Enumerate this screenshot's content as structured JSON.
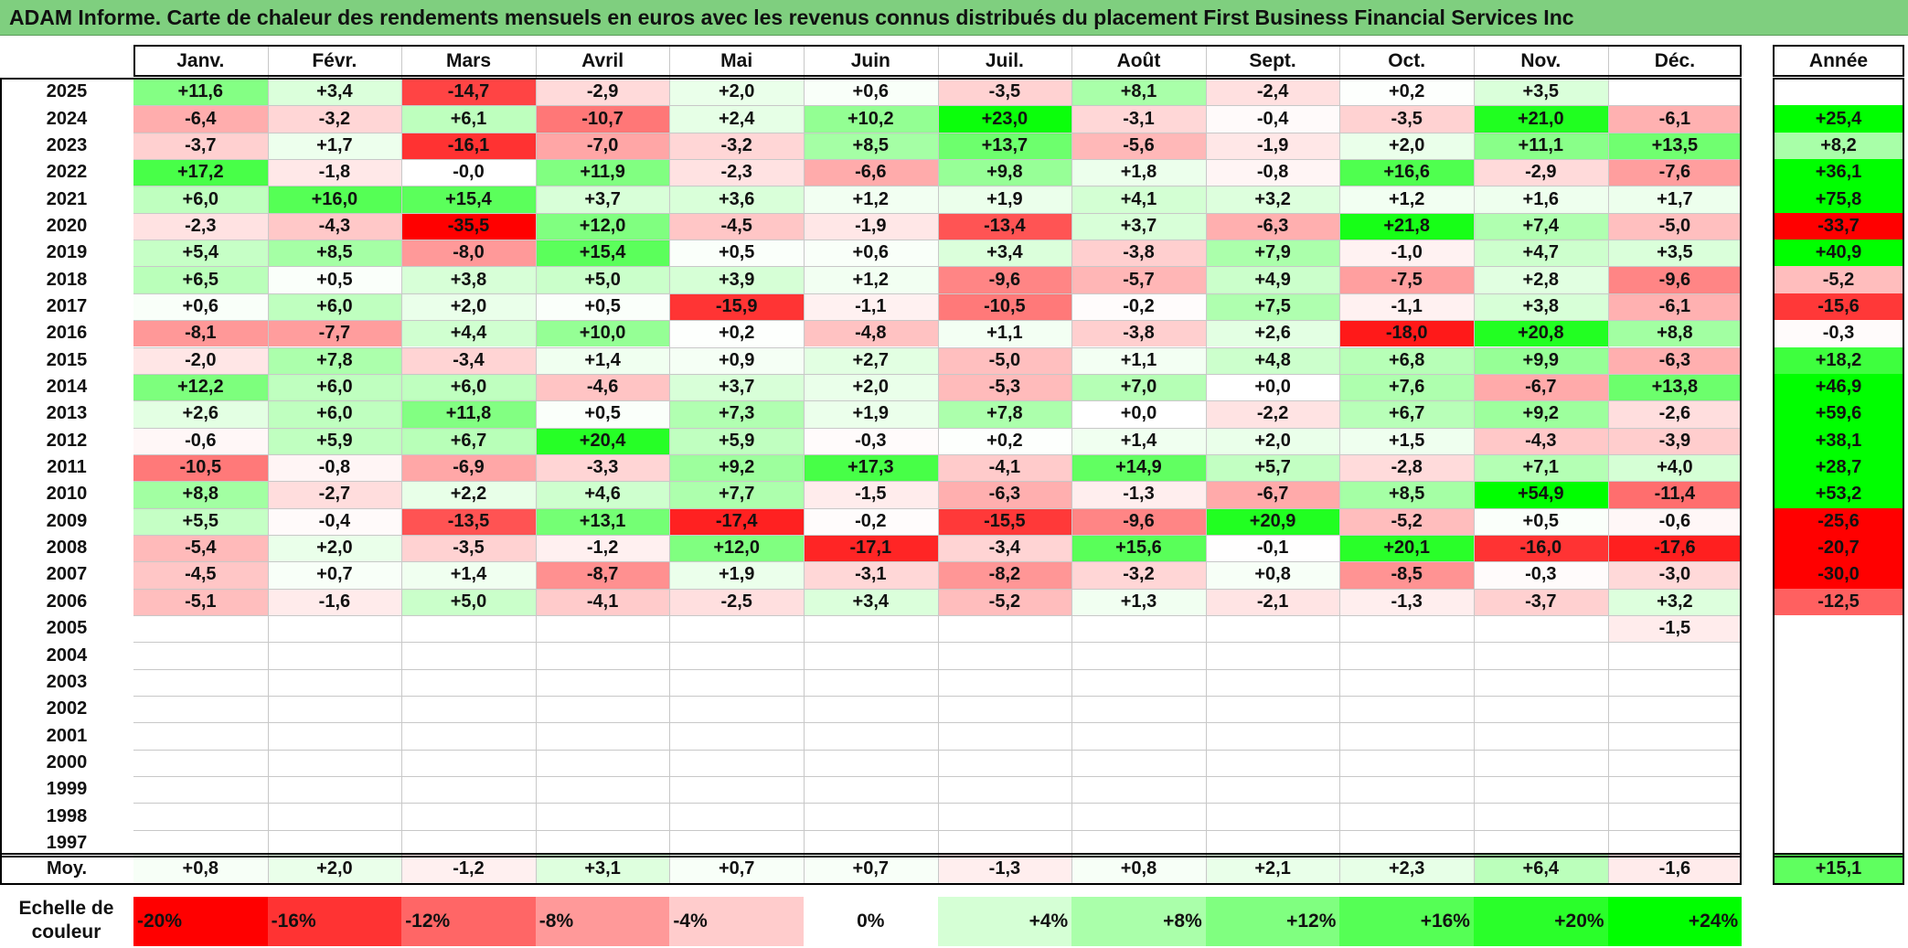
{
  "title": "ADAM Informe. Carte de chaleur des rendements mensuels en euros avec les revenus connus distribués du placement First Business Financial Services Inc",
  "colors": {
    "title_bg": "#7fcf7f",
    "neg_max": "#ff0000",
    "pos_max": "#00ff00",
    "neutral": "#ffffff"
  },
  "chart_data": {
    "type": "heatmap",
    "title": "ADAM Informe. Carte de chaleur des rendements mensuels en euros avec les revenus connus distribués du placement First Business Financial Services Inc",
    "months": [
      "Janv.",
      "Févr.",
      "Mars",
      "Avril",
      "Mai",
      "Juin",
      "Juil.",
      "Août",
      "Sept.",
      "Oct.",
      "Nov.",
      "Déc."
    ],
    "year_header": "Année",
    "rows": [
      {
        "year": "2025",
        "values": [
          "+11,6",
          "+3,4",
          "-14,7",
          "-2,9",
          "+2,0",
          "+0,6",
          "-3,5",
          "+8,1",
          "-2,4",
          "+0,2",
          "+3,5",
          ""
        ],
        "annual": ""
      },
      {
        "year": "2024",
        "values": [
          "-6,4",
          "-3,2",
          "+6,1",
          "-10,7",
          "+2,4",
          "+10,2",
          "+23,0",
          "-3,1",
          "-0,4",
          "-3,5",
          "+21,0",
          "-6,1"
        ],
        "annual": "+25,4"
      },
      {
        "year": "2023",
        "values": [
          "-3,7",
          "+1,7",
          "-16,1",
          "-7,0",
          "-3,2",
          "+8,5",
          "+13,7",
          "-5,6",
          "-1,9",
          "+2,0",
          "+11,1",
          "+13,5"
        ],
        "annual": "+8,2"
      },
      {
        "year": "2022",
        "values": [
          "+17,2",
          "-1,8",
          "-0,0",
          "+11,9",
          "-2,3",
          "-6,6",
          "+9,8",
          "+1,8",
          "-0,8",
          "+16,6",
          "-2,9",
          "-7,6"
        ],
        "annual": "+36,1"
      },
      {
        "year": "2021",
        "values": [
          "+6,0",
          "+16,0",
          "+15,4",
          "+3,7",
          "+3,6",
          "+1,2",
          "+1,9",
          "+4,1",
          "+3,2",
          "+1,2",
          "+1,6",
          "+1,7"
        ],
        "annual": "+75,8"
      },
      {
        "year": "2020",
        "values": [
          "-2,3",
          "-4,3",
          "-35,5",
          "+12,0",
          "-4,5",
          "-1,9",
          "-13,4",
          "+3,7",
          "-6,3",
          "+21,8",
          "+7,4",
          "-5,0"
        ],
        "annual": "-33,7"
      },
      {
        "year": "2019",
        "values": [
          "+5,4",
          "+8,5",
          "-8,0",
          "+15,4",
          "+0,5",
          "+0,6",
          "+3,4",
          "-3,8",
          "+7,9",
          "-1,0",
          "+4,7",
          "+3,5"
        ],
        "annual": "+40,9"
      },
      {
        "year": "2018",
        "values": [
          "+6,5",
          "+0,5",
          "+3,8",
          "+5,0",
          "+3,9",
          "+1,2",
          "-9,6",
          "-5,7",
          "+4,9",
          "-7,5",
          "+2,8",
          "-9,6"
        ],
        "annual": "-5,2"
      },
      {
        "year": "2017",
        "values": [
          "+0,6",
          "+6,0",
          "+2,0",
          "+0,5",
          "-15,9",
          "-1,1",
          "-10,5",
          "-0,2",
          "+7,5",
          "-1,1",
          "+3,8",
          "-6,1"
        ],
        "annual": "-15,6"
      },
      {
        "year": "2016",
        "values": [
          "-8,1",
          "-7,7",
          "+4,4",
          "+10,0",
          "+0,2",
          "-4,8",
          "+1,1",
          "-3,8",
          "+2,6",
          "-18,0",
          "+20,8",
          "+8,8"
        ],
        "annual": "-0,3"
      },
      {
        "year": "2015",
        "values": [
          "-2,0",
          "+7,8",
          "-3,4",
          "+1,4",
          "+0,9",
          "+2,7",
          "-5,0",
          "+1,1",
          "+4,8",
          "+6,8",
          "+9,9",
          "-6,3"
        ],
        "annual": "+18,2"
      },
      {
        "year": "2014",
        "values": [
          "+12,2",
          "+6,0",
          "+6,0",
          "-4,6",
          "+3,7",
          "+2,0",
          "-5,3",
          "+7,0",
          "+0,0",
          "+7,6",
          "-6,7",
          "+13,8"
        ],
        "annual": "+46,9"
      },
      {
        "year": "2013",
        "values": [
          "+2,6",
          "+6,0",
          "+11,8",
          "+0,5",
          "+7,3",
          "+1,9",
          "+7,8",
          "+0,0",
          "-2,2",
          "+6,7",
          "+9,2",
          "-2,6"
        ],
        "annual": "+59,6"
      },
      {
        "year": "2012",
        "values": [
          "-0,6",
          "+5,9",
          "+6,7",
          "+20,4",
          "+5,9",
          "-0,3",
          "+0,2",
          "+1,4",
          "+2,0",
          "+1,5",
          "-4,3",
          "-3,9"
        ],
        "annual": "+38,1"
      },
      {
        "year": "2011",
        "values": [
          "-10,5",
          "-0,8",
          "-6,9",
          "-3,3",
          "+9,2",
          "+17,3",
          "-4,1",
          "+14,9",
          "+5,7",
          "-2,8",
          "+7,1",
          "+4,0"
        ],
        "annual": "+28,7"
      },
      {
        "year": "2010",
        "values": [
          "+8,8",
          "-2,7",
          "+2,2",
          "+4,6",
          "+7,7",
          "-1,5",
          "-6,3",
          "-1,3",
          "-6,7",
          "+8,5",
          "+54,9",
          "-11,4"
        ],
        "annual": "+53,2"
      },
      {
        "year": "2009",
        "values": [
          "+5,5",
          "-0,4",
          "-13,5",
          "+13,1",
          "-17,4",
          "-0,2",
          "-15,5",
          "-9,6",
          "+20,9",
          "-5,2",
          "+0,5",
          "-0,6"
        ],
        "annual": "-25,6"
      },
      {
        "year": "2008",
        "values": [
          "-5,4",
          "+2,0",
          "-3,5",
          "-1,2",
          "+12,0",
          "-17,1",
          "-3,4",
          "+15,6",
          "-0,1",
          "+20,1",
          "-16,0",
          "-17,6"
        ],
        "annual": "-20,7"
      },
      {
        "year": "2007",
        "values": [
          "-4,5",
          "+0,7",
          "+1,4",
          "-8,7",
          "+1,9",
          "-3,1",
          "-8,2",
          "-3,2",
          "+0,8",
          "-8,5",
          "-0,3",
          "-3,0"
        ],
        "annual": "-30,0"
      },
      {
        "year": "2006",
        "values": [
          "-5,1",
          "-1,6",
          "+5,0",
          "-4,1",
          "-2,5",
          "+3,4",
          "-5,2",
          "+1,3",
          "-2,1",
          "-1,3",
          "-3,7",
          "+3,2"
        ],
        "annual": "-12,5"
      },
      {
        "year": "2005",
        "values": [
          "",
          "",
          "",
          "",
          "",
          "",
          "",
          "",
          "",
          "",
          "",
          "-1,5"
        ],
        "annual": ""
      },
      {
        "year": "2004",
        "values": [
          "",
          "",
          "",
          "",
          "",
          "",
          "",
          "",
          "",
          "",
          "",
          ""
        ],
        "annual": ""
      },
      {
        "year": "2003",
        "values": [
          "",
          "",
          "",
          "",
          "",
          "",
          "",
          "",
          "",
          "",
          "",
          ""
        ],
        "annual": ""
      },
      {
        "year": "2002",
        "values": [
          "",
          "",
          "",
          "",
          "",
          "",
          "",
          "",
          "",
          "",
          "",
          ""
        ],
        "annual": ""
      },
      {
        "year": "2001",
        "values": [
          "",
          "",
          "",
          "",
          "",
          "",
          "",
          "",
          "",
          "",
          "",
          ""
        ],
        "annual": ""
      },
      {
        "year": "2000",
        "values": [
          "",
          "",
          "",
          "",
          "",
          "",
          "",
          "",
          "",
          "",
          "",
          ""
        ],
        "annual": ""
      },
      {
        "year": "1999",
        "values": [
          "",
          "",
          "",
          "",
          "",
          "",
          "",
          "",
          "",
          "",
          "",
          ""
        ],
        "annual": ""
      },
      {
        "year": "1998",
        "values": [
          "",
          "",
          "",
          "",
          "",
          "",
          "",
          "",
          "",
          "",
          "",
          ""
        ],
        "annual": ""
      },
      {
        "year": "1997",
        "values": [
          "",
          "",
          "",
          "",
          "",
          "",
          "",
          "",
          "",
          "",
          "",
          ""
        ],
        "annual": ""
      }
    ],
    "average": {
      "label": "Moy.",
      "values": [
        "+0,8",
        "+2,0",
        "-1,2",
        "+3,1",
        "+0,7",
        "+0,7",
        "-1,3",
        "+0,8",
        "+2,1",
        "+2,3",
        "+6,4",
        "-1,6"
      ],
      "annual": "+15,1"
    },
    "scale": {
      "label": "Echelle de couleur",
      "stops": [
        {
          "label": "-20%",
          "value": -20
        },
        {
          "label": "-16%",
          "value": -16
        },
        {
          "label": "-12%",
          "value": -12
        },
        {
          "label": "-8%",
          "value": -8
        },
        {
          "label": "-4%",
          "value": -4
        },
        {
          "label": "0%",
          "value": 0
        },
        {
          "label": "+4%",
          "value": 4
        },
        {
          "label": "+8%",
          "value": 8
        },
        {
          "label": "+12%",
          "value": 12
        },
        {
          "label": "+16%",
          "value": 16
        },
        {
          "label": "+20%",
          "value": 20
        },
        {
          "label": "+24%",
          "value": 24
        }
      ]
    }
  }
}
